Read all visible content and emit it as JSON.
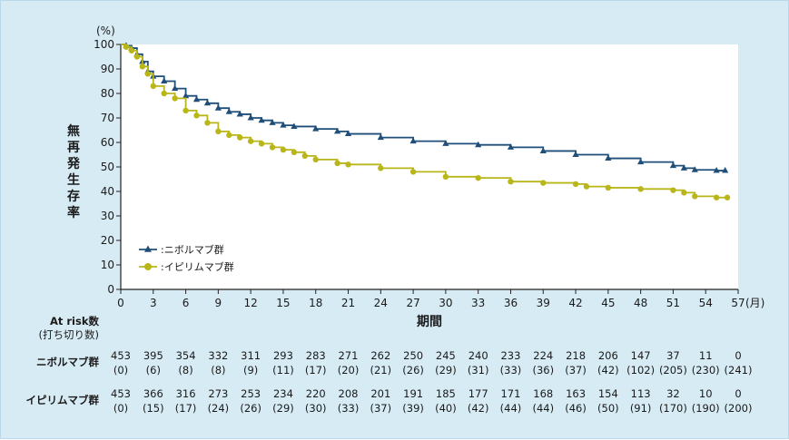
{
  "chart_data": {
    "type": "line",
    "y_unit_label": "(%)",
    "ylabel": "無再発生存率",
    "xlabel": "期間",
    "x_unit_label": "(月)",
    "xlim": [
      0,
      57
    ],
    "ylim": [
      0,
      100
    ],
    "x_ticks": [
      0,
      3,
      6,
      9,
      12,
      15,
      18,
      21,
      24,
      27,
      30,
      33,
      36,
      39,
      42,
      45,
      48,
      51,
      54,
      57
    ],
    "y_ticks": [
      0,
      10,
      20,
      30,
      40,
      50,
      60,
      70,
      80,
      90,
      100
    ],
    "legend_placement": "bottom-left",
    "series": [
      {
        "name": "ニボルマブ群",
        "color": "#1f4e79",
        "marker": "triangle",
        "points": [
          [
            0,
            100
          ],
          [
            0.5,
            99.5
          ],
          [
            1,
            98.5
          ],
          [
            1.5,
            96
          ],
          [
            2,
            93
          ],
          [
            2.5,
            89
          ],
          [
            3,
            87
          ],
          [
            4,
            85
          ],
          [
            5,
            82
          ],
          [
            6,
            79
          ],
          [
            7,
            77.5
          ],
          [
            8,
            76
          ],
          [
            9,
            74
          ],
          [
            10,
            72.5
          ],
          [
            11,
            71.5
          ],
          [
            12,
            70
          ],
          [
            13,
            69
          ],
          [
            14,
            68
          ],
          [
            15,
            67
          ],
          [
            16,
            66.5
          ],
          [
            18,
            65.5
          ],
          [
            20,
            64.5
          ],
          [
            21,
            63.5
          ],
          [
            24,
            62
          ],
          [
            27,
            60.5
          ],
          [
            30,
            59.5
          ],
          [
            33,
            59
          ],
          [
            36,
            58
          ],
          [
            39,
            56.5
          ],
          [
            42,
            55
          ],
          [
            45,
            53.5
          ],
          [
            48,
            52
          ],
          [
            51,
            50.5
          ],
          [
            52,
            49.5
          ],
          [
            53,
            48.8
          ],
          [
            55,
            48.5
          ],
          [
            55.8,
            48.5
          ]
        ]
      },
      {
        "name": "イピリムマブ群",
        "color": "#b9b61a",
        "marker": "circle",
        "points": [
          [
            0,
            100
          ],
          [
            0.5,
            99
          ],
          [
            1,
            97.5
          ],
          [
            1.5,
            95
          ],
          [
            2,
            91
          ],
          [
            2.5,
            88
          ],
          [
            3,
            83
          ],
          [
            4,
            80
          ],
          [
            5,
            78
          ],
          [
            6,
            73
          ],
          [
            7,
            71
          ],
          [
            8,
            68
          ],
          [
            9,
            64.5
          ],
          [
            10,
            63
          ],
          [
            11,
            62
          ],
          [
            12,
            60.5
          ],
          [
            13,
            59.5
          ],
          [
            14,
            58
          ],
          [
            15,
            57
          ],
          [
            16,
            56
          ],
          [
            17,
            54.5
          ],
          [
            18,
            53
          ],
          [
            20,
            51.5
          ],
          [
            21,
            51
          ],
          [
            24,
            49.5
          ],
          [
            27,
            48
          ],
          [
            30,
            46
          ],
          [
            33,
            45.5
          ],
          [
            36,
            44
          ],
          [
            39,
            43.5
          ],
          [
            42,
            43
          ],
          [
            43,
            42
          ],
          [
            45,
            41.5
          ],
          [
            48,
            41
          ],
          [
            51,
            40.5
          ],
          [
            52,
            39.5
          ],
          [
            53,
            38
          ],
          [
            55,
            37.5
          ],
          [
            56,
            37.5
          ]
        ]
      }
    ]
  },
  "risk_table": {
    "title": "At risk数",
    "subtitle": "(打ち切り数)",
    "rows": [
      {
        "label": "ニボルマブ群",
        "at_risk": [
          "453",
          "395",
          "354",
          "332",
          "311",
          "293",
          "283",
          "271",
          "262",
          "250",
          "245",
          "240",
          "233",
          "224",
          "218",
          "206",
          "147",
          "37",
          "11",
          "0"
        ],
        "censored": [
          "(0)",
          "(6)",
          "(8)",
          "(8)",
          "(9)",
          "(11)",
          "(17)",
          "(20)",
          "(21)",
          "(26)",
          "(29)",
          "(31)",
          "(33)",
          "(36)",
          "(37)",
          "(42)",
          "(102)",
          "(205)",
          "(230)",
          "(241)"
        ]
      },
      {
        "label": "イピリムマブ群",
        "at_risk": [
          "453",
          "366",
          "316",
          "273",
          "253",
          "234",
          "220",
          "208",
          "201",
          "191",
          "185",
          "177",
          "171",
          "168",
          "163",
          "154",
          "113",
          "32",
          "10",
          "0"
        ],
        "censored": [
          "(0)",
          "(15)",
          "(17)",
          "(24)",
          "(26)",
          "(29)",
          "(30)",
          "(33)",
          "(37)",
          "(39)",
          "(40)",
          "(42)",
          "(44)",
          "(44)",
          "(46)",
          "(50)",
          "(91)",
          "(170)",
          "(190)",
          "(200)"
        ]
      }
    ]
  }
}
